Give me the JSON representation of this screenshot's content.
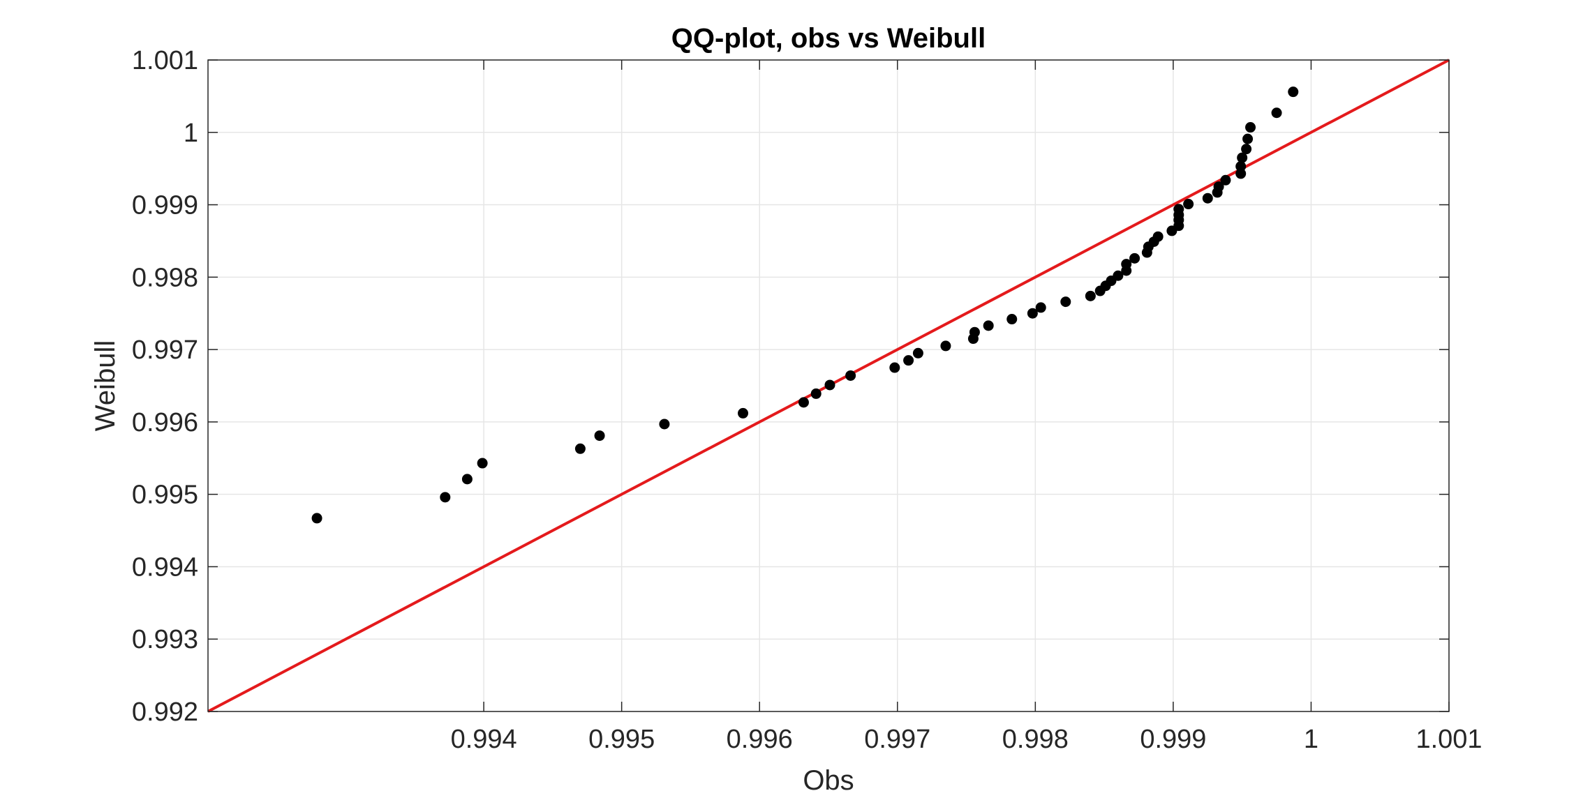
{
  "chart_data": {
    "type": "scatter",
    "title": "QQ-plot, obs vs Weibull",
    "xlabel": "Obs",
    "ylabel": "Weibull",
    "xlim": [
      0.992,
      1.001
    ],
    "ylim": [
      0.992,
      1.001
    ],
    "grid": true,
    "x_ticks": [
      0.994,
      0.995,
      0.996,
      0.997,
      0.998,
      0.999,
      1,
      1.001
    ],
    "x_tick_labels": [
      "0.994",
      "0.995",
      "0.996",
      "0.997",
      "0.998",
      "0.999",
      "1",
      "1.001"
    ],
    "y_ticks": [
      0.992,
      0.993,
      0.994,
      0.995,
      0.996,
      0.997,
      0.998,
      0.999,
      1,
      1.001
    ],
    "y_tick_labels": [
      "0.992",
      "0.993",
      "0.994",
      "0.995",
      "0.996",
      "0.997",
      "0.998",
      "0.999",
      "1",
      "1.001"
    ],
    "reference_line": {
      "name": "y = x",
      "x": [
        0.992,
        1.001
      ],
      "y": [
        0.992,
        1.001
      ],
      "color": "#e41a1c"
    },
    "series": [
      {
        "name": "obs vs Weibull",
        "color": "#000000",
        "points": [
          [
            0.99279,
            0.99467
          ],
          [
            0.99372,
            0.99496
          ],
          [
            0.99388,
            0.99521
          ],
          [
            0.99399,
            0.99543
          ],
          [
            0.9947,
            0.99563
          ],
          [
            0.99484,
            0.99581
          ],
          [
            0.99531,
            0.99597
          ],
          [
            0.99588,
            0.99612
          ],
          [
            0.99632,
            0.99627
          ],
          [
            0.99641,
            0.99639
          ],
          [
            0.99651,
            0.99651
          ],
          [
            0.99666,
            0.99664
          ],
          [
            0.99698,
            0.99675
          ],
          [
            0.99708,
            0.99685
          ],
          [
            0.99715,
            0.99695
          ],
          [
            0.99735,
            0.99705
          ],
          [
            0.99755,
            0.99715
          ],
          [
            0.99756,
            0.99724
          ],
          [
            0.99766,
            0.99733
          ],
          [
            0.99783,
            0.99742
          ],
          [
            0.99798,
            0.9975
          ],
          [
            0.99804,
            0.99758
          ],
          [
            0.99822,
            0.99766
          ],
          [
            0.9984,
            0.99774
          ],
          [
            0.99847,
            0.99781
          ],
          [
            0.99851,
            0.99788
          ],
          [
            0.99855,
            0.99795
          ],
          [
            0.9986,
            0.99802
          ],
          [
            0.99866,
            0.99809
          ],
          [
            0.99866,
            0.99818
          ],
          [
            0.99872,
            0.99826
          ],
          [
            0.99881,
            0.99834
          ],
          [
            0.99882,
            0.99842
          ],
          [
            0.99886,
            0.99849
          ],
          [
            0.99889,
            0.99856
          ],
          [
            0.99899,
            0.99864
          ],
          [
            0.99904,
            0.99871
          ],
          [
            0.99904,
            0.99879
          ],
          [
            0.99904,
            0.99886
          ],
          [
            0.99904,
            0.99894
          ],
          [
            0.99911,
            0.99901
          ],
          [
            0.99925,
            0.99909
          ],
          [
            0.99932,
            0.99917
          ],
          [
            0.99933,
            0.99925
          ],
          [
            0.99938,
            0.99934
          ],
          [
            0.99949,
            0.99943
          ],
          [
            0.99949,
            0.99953
          ],
          [
            0.9995,
            0.99965
          ],
          [
            0.99953,
            0.99977
          ],
          [
            0.99954,
            0.99991
          ],
          [
            0.99956,
            1.00007
          ],
          [
            0.99975,
            1.00027
          ],
          [
            0.99987,
            1.00056
          ]
        ]
      }
    ]
  }
}
